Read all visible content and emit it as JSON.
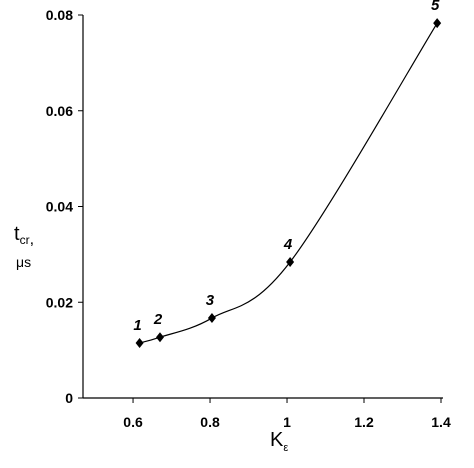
{
  "chart_data": {
    "type": "scatter",
    "xlabel": {
      "main": "K",
      "sub": "ε"
    },
    "ylabel": {
      "main": "t",
      "sub": "cr",
      "sep": ",",
      "unit": "μs"
    },
    "x": [
      0.617,
      0.67,
      0.805,
      1.008,
      1.39
    ],
    "values": [
      0.0115,
      0.0127,
      0.0167,
      0.0284,
      0.0783
    ],
    "point_labels": [
      "1",
      "2",
      "3",
      "4",
      "5"
    ],
    "color": "#000000",
    "xlim": [
      0.47,
      1.4
    ],
    "xticks": [
      0.6,
      0.8,
      1,
      1.2,
      1.4
    ],
    "ylim": [
      0,
      0.08
    ],
    "yticks": [
      0,
      0.02,
      0.04,
      0.06,
      0.08
    ],
    "grid": false
  }
}
